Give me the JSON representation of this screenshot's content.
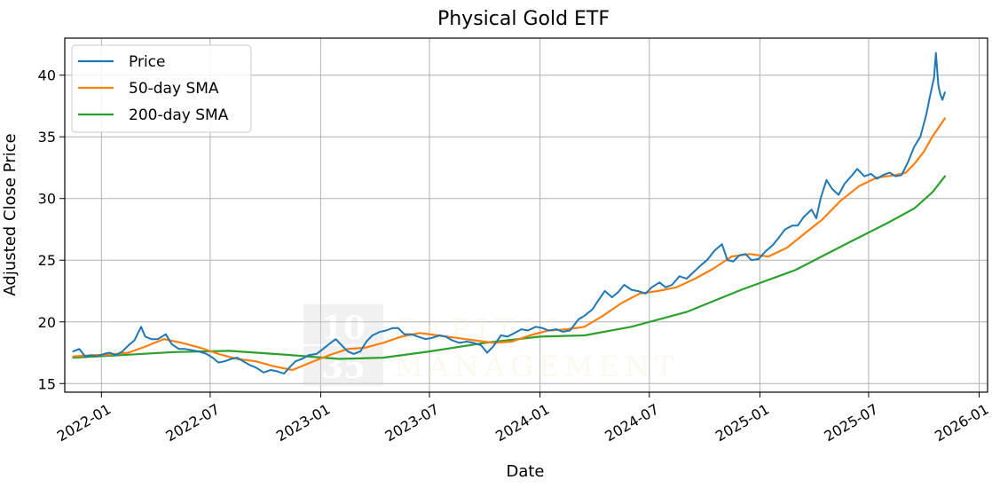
{
  "chart_data": {
    "type": "line",
    "title": "Physical Gold ETF",
    "xlabel": "Date",
    "ylabel": "Adjusted Close Price",
    "x_range": [
      "2021-11-01",
      "2026-01-15"
    ],
    "ylim": [
      14.3,
      43.0
    ],
    "grid": true,
    "legend_placement": "top-left",
    "x_ticks": [
      "2022-01",
      "2022-07",
      "2023-01",
      "2023-07",
      "2024-01",
      "2024-07",
      "2025-01",
      "2025-07",
      "2026-01"
    ],
    "y_ticks": [
      15,
      20,
      25,
      30,
      35,
      40
    ],
    "series": [
      {
        "name": "Price",
        "color": "#1f77b4",
        "points": [
          [
            "2021-11-15",
            17.6
          ],
          [
            "2021-11-25",
            17.8
          ],
          [
            "2021-12-05",
            17.2
          ],
          [
            "2021-12-15",
            17.3
          ],
          [
            "2021-12-25",
            17.2
          ],
          [
            "2022-01-05",
            17.4
          ],
          [
            "2022-01-15",
            17.5
          ],
          [
            "2022-01-25",
            17.3
          ],
          [
            "2022-02-05",
            17.6
          ],
          [
            "2022-02-15",
            18.1
          ],
          [
            "2022-02-25",
            18.5
          ],
          [
            "2022-03-08",
            19.6
          ],
          [
            "2022-03-15",
            18.8
          ],
          [
            "2022-03-25",
            18.6
          ],
          [
            "2022-04-05",
            18.6
          ],
          [
            "2022-04-18",
            19.0
          ],
          [
            "2022-04-28",
            18.2
          ],
          [
            "2022-05-10",
            17.8
          ],
          [
            "2022-05-20",
            17.8
          ],
          [
            "2022-06-01",
            17.7
          ],
          [
            "2022-06-12",
            17.6
          ],
          [
            "2022-06-25",
            17.4
          ],
          [
            "2022-07-05",
            17.1
          ],
          [
            "2022-07-15",
            16.7
          ],
          [
            "2022-07-25",
            16.8
          ],
          [
            "2022-08-05",
            17.0
          ],
          [
            "2022-08-15",
            17.1
          ],
          [
            "2022-08-25",
            16.8
          ],
          [
            "2022-09-05",
            16.5
          ],
          [
            "2022-09-15",
            16.3
          ],
          [
            "2022-09-28",
            15.9
          ],
          [
            "2022-10-10",
            16.1
          ],
          [
            "2022-10-20",
            16.0
          ],
          [
            "2022-11-01",
            15.8
          ],
          [
            "2022-11-10",
            16.3
          ],
          [
            "2022-11-20",
            16.8
          ],
          [
            "2022-12-01",
            17.0
          ],
          [
            "2022-12-12",
            17.3
          ],
          [
            "2022-12-25",
            17.4
          ],
          [
            "2023-01-05",
            17.8
          ],
          [
            "2023-01-15",
            18.2
          ],
          [
            "2023-01-26",
            18.6
          ],
          [
            "2023-02-05",
            18.1
          ],
          [
            "2023-02-15",
            17.6
          ],
          [
            "2023-02-25",
            17.4
          ],
          [
            "2023-03-08",
            17.6
          ],
          [
            "2023-03-18",
            18.4
          ],
          [
            "2023-03-28",
            18.9
          ],
          [
            "2023-04-10",
            19.2
          ],
          [
            "2023-04-20",
            19.3
          ],
          [
            "2023-05-01",
            19.5
          ],
          [
            "2023-05-10",
            19.5
          ],
          [
            "2023-05-20",
            19.0
          ],
          [
            "2023-06-01",
            19.0
          ],
          [
            "2023-06-12",
            18.8
          ],
          [
            "2023-06-25",
            18.6
          ],
          [
            "2023-07-05",
            18.7
          ],
          [
            "2023-07-18",
            18.9
          ],
          [
            "2023-07-28",
            18.8
          ],
          [
            "2023-08-08",
            18.5
          ],
          [
            "2023-08-20",
            18.3
          ],
          [
            "2023-09-01",
            18.4
          ],
          [
            "2023-09-12",
            18.3
          ],
          [
            "2023-09-25",
            18.1
          ],
          [
            "2023-10-05",
            17.5
          ],
          [
            "2023-10-15",
            18.0
          ],
          [
            "2023-10-28",
            18.9
          ],
          [
            "2023-11-08",
            18.8
          ],
          [
            "2023-11-20",
            19.1
          ],
          [
            "2023-12-01",
            19.4
          ],
          [
            "2023-12-12",
            19.3
          ],
          [
            "2023-12-25",
            19.6
          ],
          [
            "2024-01-05",
            19.5
          ],
          [
            "2024-01-15",
            19.3
          ],
          [
            "2024-01-28",
            19.4
          ],
          [
            "2024-02-08",
            19.2
          ],
          [
            "2024-02-20",
            19.3
          ],
          [
            "2024-03-05",
            20.2
          ],
          [
            "2024-03-15",
            20.5
          ],
          [
            "2024-03-28",
            21.0
          ],
          [
            "2024-04-08",
            21.8
          ],
          [
            "2024-04-18",
            22.5
          ],
          [
            "2024-04-30",
            22.0
          ],
          [
            "2024-05-10",
            22.4
          ],
          [
            "2024-05-20",
            23.0
          ],
          [
            "2024-06-01",
            22.6
          ],
          [
            "2024-06-12",
            22.5
          ],
          [
            "2024-06-25",
            22.3
          ],
          [
            "2024-07-05",
            22.8
          ],
          [
            "2024-07-18",
            23.2
          ],
          [
            "2024-07-28",
            22.8
          ],
          [
            "2024-08-08",
            23.0
          ],
          [
            "2024-08-20",
            23.7
          ],
          [
            "2024-09-01",
            23.5
          ],
          [
            "2024-09-12",
            24.0
          ],
          [
            "2024-09-25",
            24.6
          ],
          [
            "2024-10-05",
            25.0
          ],
          [
            "2024-10-18",
            25.8
          ],
          [
            "2024-10-30",
            26.3
          ],
          [
            "2024-11-08",
            25.0
          ],
          [
            "2024-11-18",
            24.9
          ],
          [
            "2024-11-28",
            25.4
          ],
          [
            "2024-12-08",
            25.5
          ],
          [
            "2024-12-18",
            25.0
          ],
          [
            "2024-12-30",
            25.1
          ],
          [
            "2025-01-10",
            25.7
          ],
          [
            "2025-01-22",
            26.2
          ],
          [
            "2025-02-01",
            26.8
          ],
          [
            "2025-02-12",
            27.5
          ],
          [
            "2025-02-24",
            27.8
          ],
          [
            "2025-03-05",
            27.8
          ],
          [
            "2025-03-15",
            28.5
          ],
          [
            "2025-03-28",
            29.1
          ],
          [
            "2025-04-05",
            28.4
          ],
          [
            "2025-04-12",
            30.0
          ],
          [
            "2025-04-22",
            31.5
          ],
          [
            "2025-05-01",
            30.8
          ],
          [
            "2025-05-12",
            30.3
          ],
          [
            "2025-05-22",
            31.2
          ],
          [
            "2025-06-02",
            31.8
          ],
          [
            "2025-06-12",
            32.4
          ],
          [
            "2025-06-24",
            31.8
          ],
          [
            "2025-07-05",
            32.0
          ],
          [
            "2025-07-15",
            31.6
          ],
          [
            "2025-07-25",
            31.9
          ],
          [
            "2025-08-05",
            32.1
          ],
          [
            "2025-08-15",
            31.8
          ],
          [
            "2025-08-25",
            31.9
          ],
          [
            "2025-09-05",
            33.0
          ],
          [
            "2025-09-15",
            34.2
          ],
          [
            "2025-09-25",
            35.0
          ],
          [
            "2025-10-05",
            36.8
          ],
          [
            "2025-10-12",
            38.5
          ],
          [
            "2025-10-18",
            39.8
          ],
          [
            "2025-10-21",
            41.8
          ],
          [
            "2025-10-25",
            39.2
          ],
          [
            "2025-10-28",
            38.5
          ],
          [
            "2025-11-01",
            38.0
          ],
          [
            "2025-11-05",
            38.6
          ]
        ]
      },
      {
        "name": "50-day SMA",
        "color": "#ff7f0e",
        "points": [
          [
            "2021-11-15",
            17.2
          ],
          [
            "2021-12-15",
            17.3
          ],
          [
            "2022-01-15",
            17.35
          ],
          [
            "2022-02-15",
            17.5
          ],
          [
            "2022-03-15",
            18.0
          ],
          [
            "2022-04-15",
            18.6
          ],
          [
            "2022-05-15",
            18.3
          ],
          [
            "2022-06-15",
            17.9
          ],
          [
            "2022-07-15",
            17.4
          ],
          [
            "2022-08-15",
            17.0
          ],
          [
            "2022-09-15",
            16.8
          ],
          [
            "2022-10-15",
            16.4
          ],
          [
            "2022-11-15",
            16.1
          ],
          [
            "2022-12-15",
            16.7
          ],
          [
            "2023-01-15",
            17.3
          ],
          [
            "2023-02-15",
            17.8
          ],
          [
            "2023-03-15",
            17.9
          ],
          [
            "2023-04-15",
            18.3
          ],
          [
            "2023-05-15",
            18.8
          ],
          [
            "2023-06-15",
            19.1
          ],
          [
            "2023-07-15",
            18.9
          ],
          [
            "2023-08-15",
            18.7
          ],
          [
            "2023-09-15",
            18.5
          ],
          [
            "2023-10-15",
            18.3
          ],
          [
            "2023-11-15",
            18.4
          ],
          [
            "2023-12-15",
            18.9
          ],
          [
            "2024-01-15",
            19.3
          ],
          [
            "2024-02-15",
            19.4
          ],
          [
            "2024-03-15",
            19.6
          ],
          [
            "2024-04-15",
            20.5
          ],
          [
            "2024-05-15",
            21.5
          ],
          [
            "2024-06-15",
            22.3
          ],
          [
            "2024-07-15",
            22.5
          ],
          [
            "2024-08-15",
            22.8
          ],
          [
            "2024-09-15",
            23.5
          ],
          [
            "2024-10-15",
            24.3
          ],
          [
            "2024-11-15",
            25.3
          ],
          [
            "2024-12-15",
            25.5
          ],
          [
            "2025-01-15",
            25.3
          ],
          [
            "2025-02-15",
            26.0
          ],
          [
            "2025-03-15",
            27.1
          ],
          [
            "2025-04-15",
            28.3
          ],
          [
            "2025-05-15",
            29.8
          ],
          [
            "2025-06-15",
            31.0
          ],
          [
            "2025-07-15",
            31.7
          ],
          [
            "2025-08-15",
            31.9
          ],
          [
            "2025-09-01",
            32.1
          ],
          [
            "2025-09-15",
            32.8
          ],
          [
            "2025-10-01",
            33.8
          ],
          [
            "2025-10-15",
            35.0
          ],
          [
            "2025-11-05",
            36.5
          ]
        ]
      },
      {
        "name": "200-day SMA",
        "color": "#2ca02c",
        "points": [
          [
            "2021-11-15",
            17.1
          ],
          [
            "2022-02-01",
            17.3
          ],
          [
            "2022-05-01",
            17.55
          ],
          [
            "2022-08-01",
            17.65
          ],
          [
            "2022-11-01",
            17.35
          ],
          [
            "2023-02-01",
            17.0
          ],
          [
            "2023-04-15",
            17.1
          ],
          [
            "2023-07-01",
            17.6
          ],
          [
            "2023-10-01",
            18.3
          ],
          [
            "2024-01-01",
            18.8
          ],
          [
            "2024-03-15",
            18.9
          ],
          [
            "2024-06-01",
            19.6
          ],
          [
            "2024-09-01",
            20.8
          ],
          [
            "2024-12-01",
            22.6
          ],
          [
            "2025-03-01",
            24.2
          ],
          [
            "2025-06-01",
            26.5
          ],
          [
            "2025-08-01",
            28.0
          ],
          [
            "2025-09-15",
            29.2
          ],
          [
            "2025-10-15",
            30.5
          ],
          [
            "2025-11-05",
            31.8
          ]
        ]
      }
    ]
  },
  "watermark": {
    "top": "10",
    "bottom": "35",
    "word1": "CAPITAL",
    "word2": "MANAGEMENT"
  }
}
